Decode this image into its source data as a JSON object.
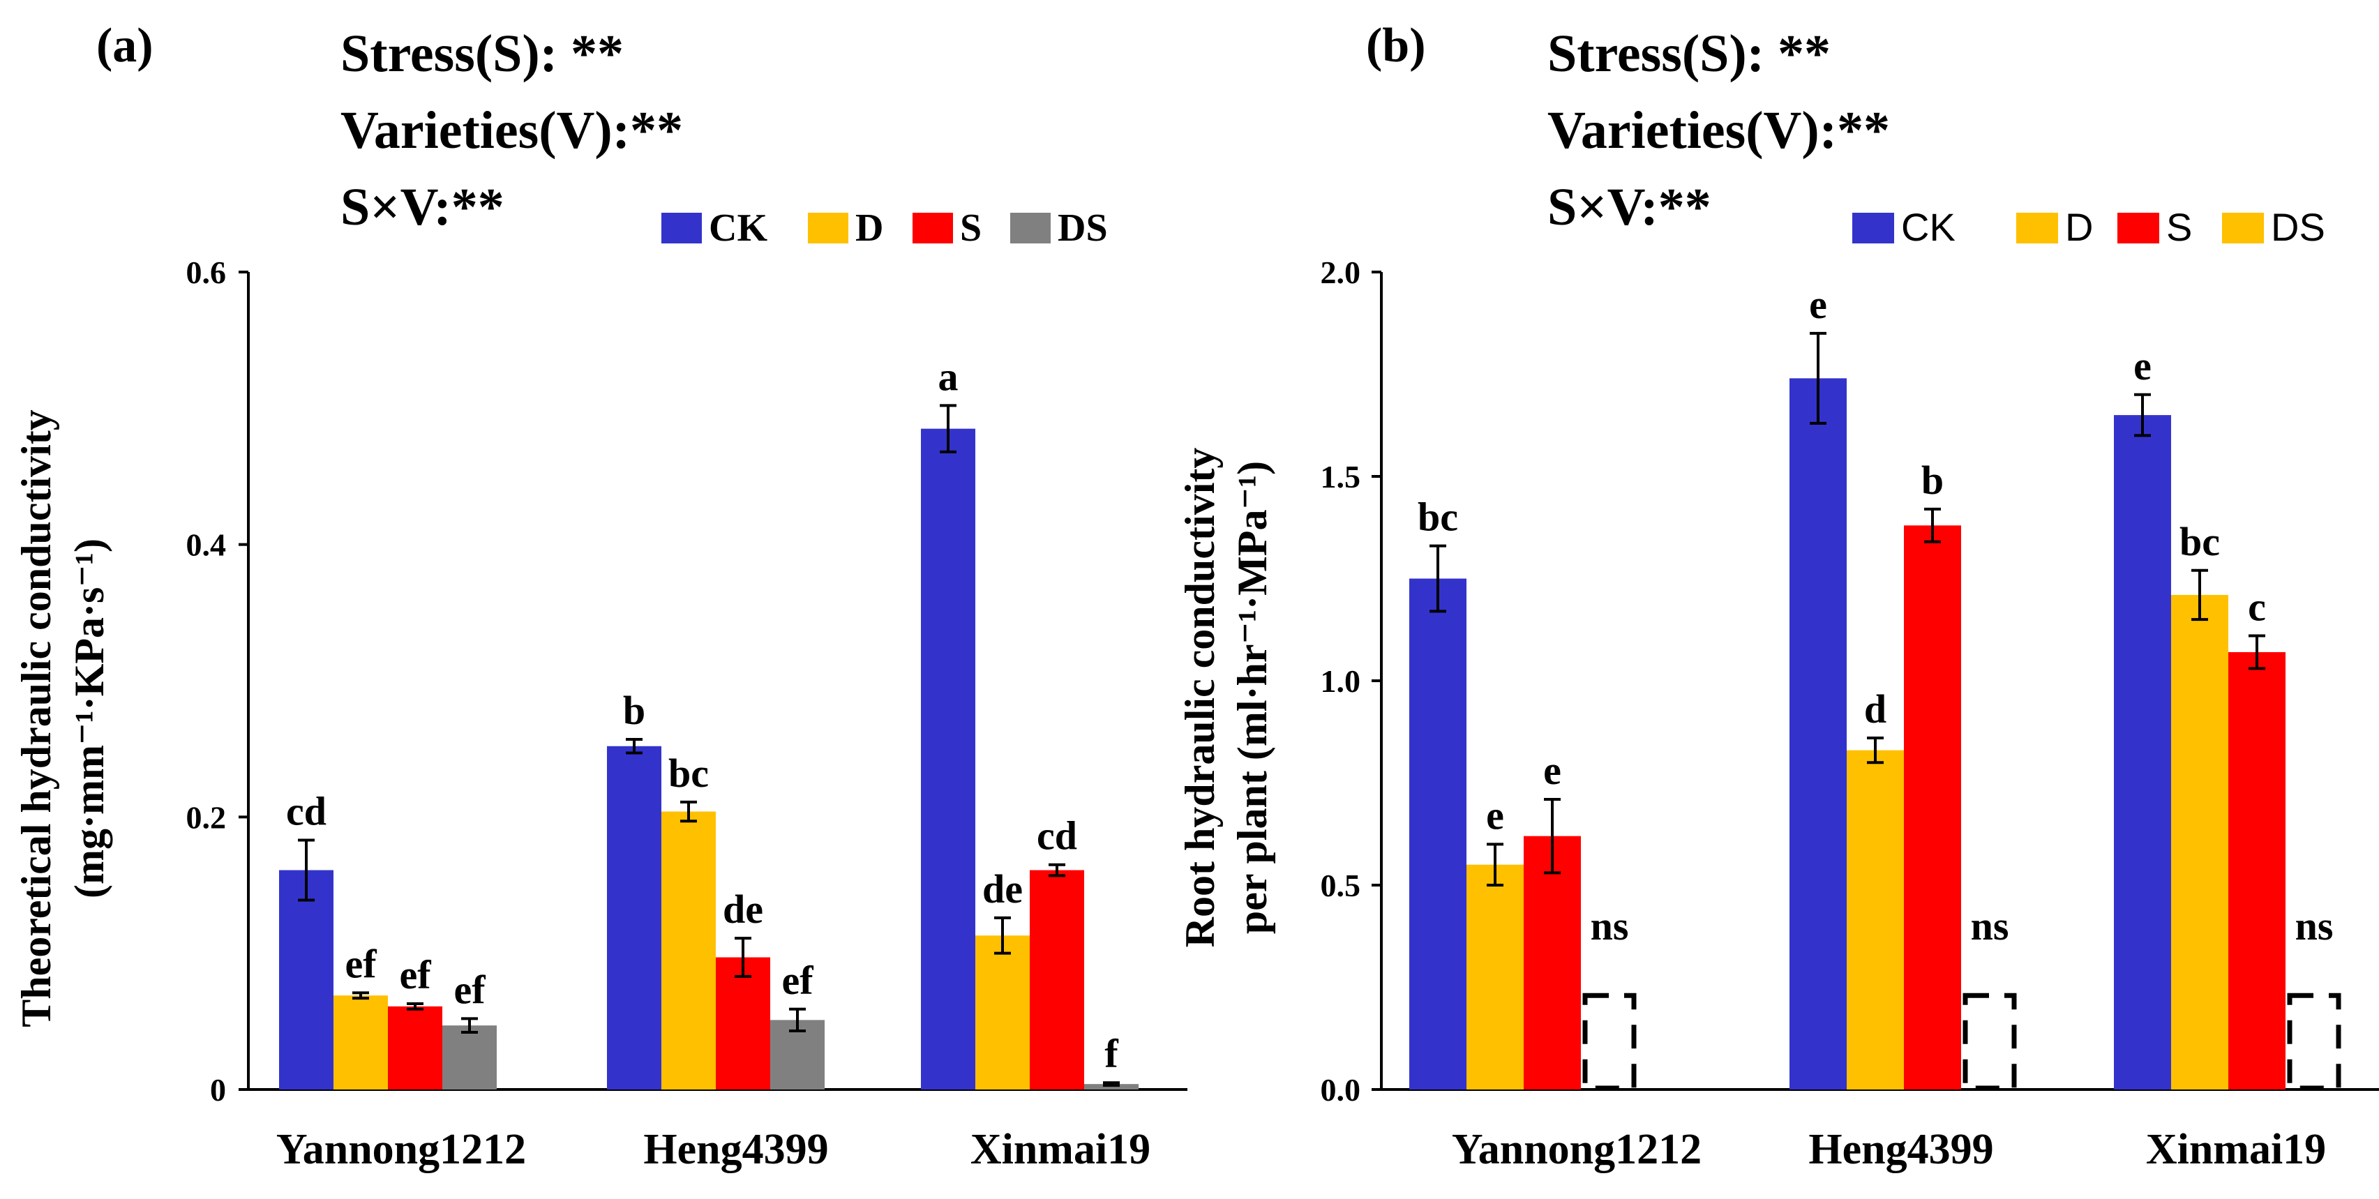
{
  "figure": {
    "panels": [
      {
        "id": "a",
        "label": "(a)",
        "stats": [
          "Stress(S):   **",
          "Varieties(V):**",
          "S×V:**"
        ],
        "ylabel_line1": "Theoretical hydraulic conductivity",
        "ylabel_line2": "(mg·mm⁻¹·KPa·s⁻¹)"
      },
      {
        "id": "b",
        "label": "(b)",
        "stats": [
          "Stress(S):   **",
          "Varieties(V):**",
          "S×V:**"
        ],
        "ylabel_line1": "Root hydraulic conductivity",
        "ylabel_line2": "per plant (ml·hr⁻¹·MPa⁻¹)"
      }
    ]
  },
  "chart_data": [
    {
      "type": "bar",
      "panel": "(a)",
      "title": "",
      "xlabel": "",
      "ylabel": "Theoretical hydraulic conductivity (mg·mm⁻¹·KPa·s⁻¹)",
      "ylim": [
        0,
        0.6
      ],
      "yticks": [
        0,
        0.2,
        0.4,
        0.6
      ],
      "ytick_labels": [
        "0",
        "0.2",
        "0.4",
        "0.6"
      ],
      "categories": [
        "Yannong1212",
        "Heng4399",
        "Xinmai19"
      ],
      "legend": [
        "CK",
        "D",
        "S",
        "DS"
      ],
      "legend_position": "top-right",
      "series": [
        {
          "name": "CK",
          "color": "#3333cc",
          "values": [
            0.161,
            0.252,
            0.485
          ],
          "errors": [
            0.022,
            0.005,
            0.017
          ],
          "labels": [
            "cd",
            "b",
            "a"
          ]
        },
        {
          "name": "D",
          "color": "#ffc000",
          "values": [
            0.069,
            0.204,
            0.113
          ],
          "errors": [
            0.002,
            0.007,
            0.013
          ],
          "labels": [
            "ef",
            "bc",
            "de"
          ]
        },
        {
          "name": "S",
          "color": "#ff0000",
          "values": [
            0.061,
            0.097,
            0.161
          ],
          "errors": [
            0.002,
            0.014,
            0.004
          ],
          "labels": [
            "ef",
            "de",
            "cd"
          ]
        },
        {
          "name": "DS",
          "color": "#808080",
          "values": [
            0.047,
            0.051,
            0.004
          ],
          "errors": [
            0.005,
            0.008,
            0.001
          ],
          "labels": [
            "ef",
            "ef",
            "f"
          ]
        }
      ]
    },
    {
      "type": "bar",
      "panel": "(b)",
      "title": "",
      "xlabel": "",
      "ylabel": "Root hydraulic conductivity per plant (ml·hr⁻¹·MPa⁻¹)",
      "ylim": [
        0,
        2.0
      ],
      "yticks": [
        0,
        0.5,
        1.0,
        1.5,
        2.0
      ],
      "ytick_labels": [
        "0.0",
        "0.5",
        "1.0",
        "1.5",
        "2.0"
      ],
      "categories": [
        "Yannong1212",
        "Heng4399",
        "Xinmai19"
      ],
      "legend": [
        "CK",
        "D",
        "S",
        "DS"
      ],
      "legend_position": "top-right",
      "series": [
        {
          "name": "CK",
          "color": "#3333cc",
          "values": [
            1.25,
            1.74,
            1.65
          ],
          "errors": [
            0.08,
            0.11,
            0.05
          ],
          "labels": [
            "bc",
            "e",
            "e"
          ]
        },
        {
          "name": "D",
          "color": "#ffc000",
          "values": [
            0.55,
            0.83,
            1.21
          ],
          "errors": [
            0.05,
            0.03,
            0.06
          ],
          "labels": [
            "e",
            "d",
            "bc"
          ]
        },
        {
          "name": "S",
          "color": "#ff0000",
          "values": [
            0.62,
            1.38,
            1.07
          ],
          "errors": [
            0.09,
            0.04,
            0.04
          ],
          "labels": [
            "e",
            "b",
            "c"
          ]
        },
        {
          "name": "DS",
          "color": "#ffc000",
          "values": [
            0.23,
            0.23,
            0.23
          ],
          "errors": [
            0,
            0,
            0
          ],
          "labels": [
            "ns",
            "ns",
            "ns"
          ],
          "style": "dashed-outline"
        }
      ]
    }
  ]
}
